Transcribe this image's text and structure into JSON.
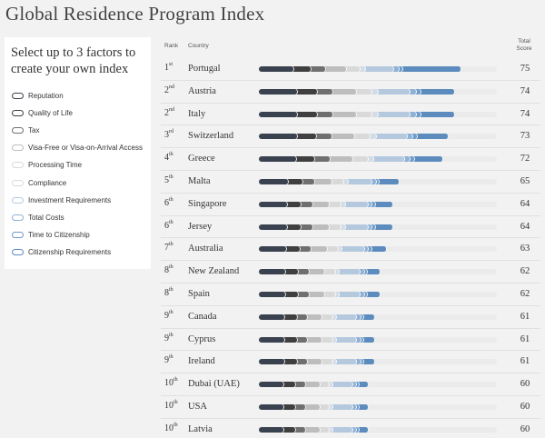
{
  "title": "Global Residence Program Index",
  "sidebar": {
    "prompt": "Select up to 3 factors to create your own index",
    "factors": [
      {
        "label": "Reputation",
        "color": "#3a4250"
      },
      {
        "label": "Quality of Life",
        "color": "#3f3f3f"
      },
      {
        "label": "Tax",
        "color": "#6f6f6f"
      },
      {
        "label": "Visa-Free or Visa-on-Arrival Access",
        "color": "#bdbdbd"
      },
      {
        "label": "Processing Time",
        "color": "#d9d9d9"
      },
      {
        "label": "Compliance",
        "color": "#d3dbe4"
      },
      {
        "label": "Investment Requirements",
        "color": "#b4c9de"
      },
      {
        "label": "Total Costs",
        "color": "#8eb1d5"
      },
      {
        "label": "Time to Citizenship",
        "color": "#6f9cc9"
      },
      {
        "label": "Citizenship Requirements",
        "color": "#5c8bbd"
      }
    ]
  },
  "table": {
    "rank_header": "Rank",
    "country_header": "Country",
    "score_header": "Total Score",
    "rows": [
      {
        "rank": "1",
        "suffix": "st",
        "country": "Portugal",
        "score": "75",
        "bar": [
          0.3,
          0.16,
          0.13,
          0.19,
          0.13,
          0.05,
          0.26,
          0.05,
          0.035,
          0.53
        ]
      },
      {
        "rank": "2",
        "suffix": "nd",
        "country": "Austria",
        "score": "74",
        "bar": [
          0.3,
          0.16,
          0.13,
          0.19,
          0.13,
          0.05,
          0.26,
          0.05,
          0.035,
          0.28
        ]
      },
      {
        "rank": "2",
        "suffix": "nd",
        "country": "Italy",
        "score": "74",
        "bar": [
          0.3,
          0.16,
          0.13,
          0.19,
          0.13,
          0.05,
          0.26,
          0.05,
          0.035,
          0.28
        ]
      },
      {
        "rank": "3",
        "suffix": "rd",
        "country": "Switzerland",
        "score": "73",
        "bar": [
          0.3,
          0.16,
          0.13,
          0.19,
          0.13,
          0.05,
          0.26,
          0.05,
          0.035,
          0.26
        ]
      },
      {
        "rank": "4",
        "suffix": "th",
        "country": "Greece",
        "score": "72",
        "bar": [
          0.3,
          0.16,
          0.13,
          0.19,
          0.13,
          0.05,
          0.26,
          0.05,
          0.035,
          0.24
        ]
      },
      {
        "rank": "5",
        "suffix": "th",
        "country": "Malta",
        "score": "65",
        "bar": [
          0.3,
          0.16,
          0.13,
          0.19,
          0.13,
          0.05,
          0.26,
          0.05,
          0.035,
          0.22
        ]
      },
      {
        "rank": "6",
        "suffix": "th",
        "country": "Singapore",
        "score": "64",
        "bar": [
          0.3,
          0.16,
          0.13,
          0.19,
          0.13,
          0.05,
          0.26,
          0.05,
          0.035,
          0.2
        ]
      },
      {
        "rank": "6",
        "suffix": "th",
        "country": "Jersey",
        "score": "64",
        "bar": [
          0.3,
          0.16,
          0.13,
          0.19,
          0.13,
          0.05,
          0.26,
          0.05,
          0.035,
          0.2
        ]
      },
      {
        "rank": "7",
        "suffix": "th",
        "country": "Australia",
        "score": "63",
        "bar": [
          0.3,
          0.16,
          0.13,
          0.19,
          0.13,
          0.05,
          0.26,
          0.05,
          0.035,
          0.18
        ]
      },
      {
        "rank": "8",
        "suffix": "th",
        "country": "New Zealand",
        "score": "62",
        "bar": [
          0.3,
          0.16,
          0.13,
          0.19,
          0.13,
          0.05,
          0.26,
          0.05,
          0.035,
          0.16
        ]
      },
      {
        "rank": "8",
        "suffix": "th",
        "country": "Spain",
        "score": "62",
        "bar": [
          0.3,
          0.16,
          0.13,
          0.19,
          0.13,
          0.05,
          0.26,
          0.05,
          0.035,
          0.16
        ]
      },
      {
        "rank": "9",
        "suffix": "th",
        "country": "Canada",
        "score": "61",
        "bar": [
          0.3,
          0.16,
          0.13,
          0.19,
          0.13,
          0.05,
          0.26,
          0.05,
          0.035,
          0.14
        ]
      },
      {
        "rank": "9",
        "suffix": "th",
        "country": "Cyprus",
        "score": "61",
        "bar": [
          0.3,
          0.16,
          0.13,
          0.19,
          0.13,
          0.05,
          0.26,
          0.05,
          0.035,
          0.14
        ]
      },
      {
        "rank": "9",
        "suffix": "th",
        "country": "Ireland",
        "score": "61",
        "bar": [
          0.3,
          0.16,
          0.13,
          0.19,
          0.13,
          0.05,
          0.26,
          0.05,
          0.035,
          0.14
        ]
      },
      {
        "rank": "10",
        "suffix": "th",
        "country": "Dubai (UAE)",
        "score": "60",
        "bar": [
          0.3,
          0.16,
          0.13,
          0.19,
          0.13,
          0.05,
          0.26,
          0.05,
          0.035,
          0.12
        ]
      },
      {
        "rank": "10",
        "suffix": "th",
        "country": "USA",
        "score": "60",
        "bar": [
          0.3,
          0.16,
          0.13,
          0.19,
          0.13,
          0.05,
          0.26,
          0.05,
          0.035,
          0.12
        ]
      },
      {
        "rank": "10",
        "suffix": "th",
        "country": "Latvia",
        "score": "60",
        "bar": [
          0.3,
          0.16,
          0.13,
          0.19,
          0.13,
          0.05,
          0.26,
          0.05,
          0.035,
          0.12
        ]
      }
    ]
  }
}
